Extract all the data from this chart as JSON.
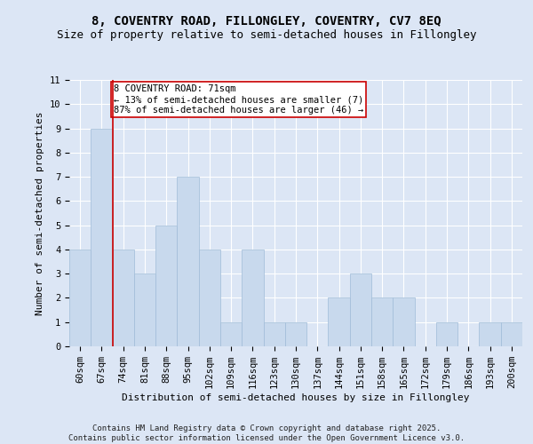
{
  "title_line1": "8, COVENTRY ROAD, FILLONGLEY, COVENTRY, CV7 8EQ",
  "title_line2": "Size of property relative to semi-detached houses in Fillongley",
  "xlabel": "Distribution of semi-detached houses by size in Fillongley",
  "ylabel": "Number of semi-detached properties",
  "categories": [
    "60sqm",
    "67sqm",
    "74sqm",
    "81sqm",
    "88sqm",
    "95sqm",
    "102sqm",
    "109sqm",
    "116sqm",
    "123sqm",
    "130sqm",
    "137sqm",
    "144sqm",
    "151sqm",
    "158sqm",
    "165sqm",
    "172sqm",
    "179sqm",
    "186sqm",
    "193sqm",
    "200sqm"
  ],
  "values": [
    4,
    9,
    4,
    3,
    5,
    7,
    4,
    1,
    4,
    1,
    1,
    0,
    2,
    3,
    2,
    2,
    0,
    1,
    0,
    1,
    1
  ],
  "bar_color": "#c8d9ed",
  "bar_edge_color": "#a0bcd8",
  "highlight_index": 1,
  "highlight_line_color": "#cc0000",
  "annotation_text": "8 COVENTRY ROAD: 71sqm\n← 13% of semi-detached houses are smaller (7)\n87% of semi-detached houses are larger (46) →",
  "annotation_box_color": "#ffffff",
  "annotation_box_edge": "#cc0000",
  "ylim": [
    0,
    11
  ],
  "yticks": [
    0,
    1,
    2,
    3,
    4,
    5,
    6,
    7,
    8,
    9,
    10,
    11
  ],
  "footer_text": "Contains HM Land Registry data © Crown copyright and database right 2025.\nContains public sector information licensed under the Open Government Licence v3.0.",
  "bg_color": "#dce6f5",
  "plot_bg_color": "#dce6f5",
  "grid_color": "#ffffff",
  "title_fontsize": 10,
  "subtitle_fontsize": 9,
  "axis_label_fontsize": 8,
  "tick_fontsize": 7.5,
  "annotation_fontsize": 7.5,
  "footer_fontsize": 6.5
}
